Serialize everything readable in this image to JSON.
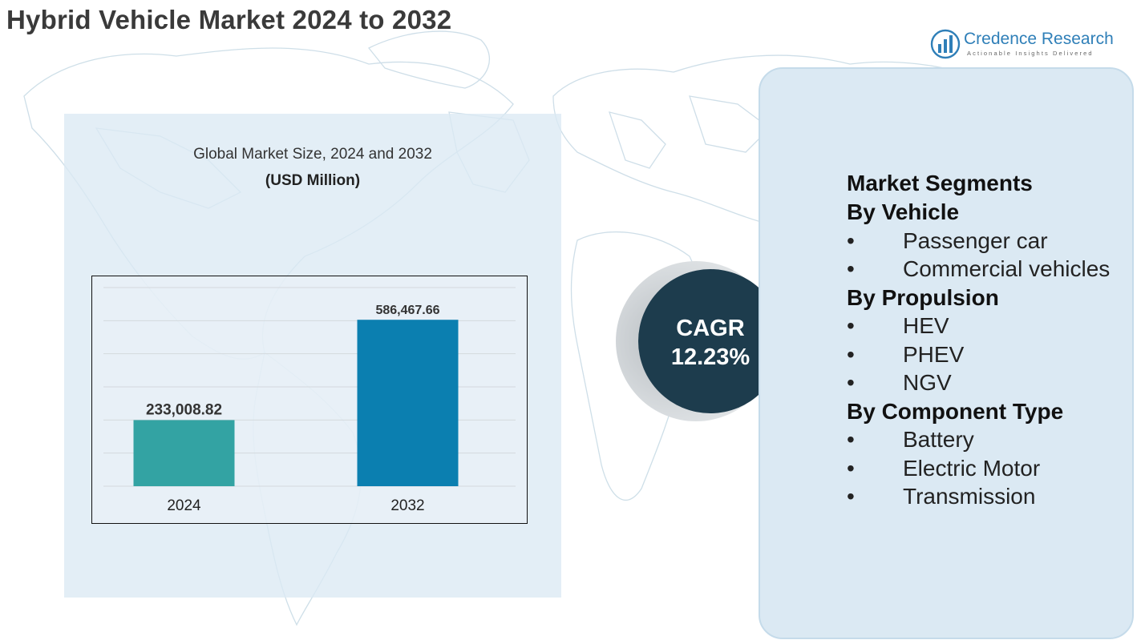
{
  "header": {
    "title": "Hybrid Vehicle Market 2024 to 2032"
  },
  "logo": {
    "name": "Credence Research",
    "tagline": "Actionable Insights Delivered",
    "icon": "bar-chart-logo-icon",
    "color": "#2f7fb8"
  },
  "chart_data": {
    "type": "bar",
    "title": "Global Market Size, 2024 and 2032",
    "unit_label": "(USD Million)",
    "categories": [
      "2024",
      "2032"
    ],
    "values": [
      233008.82,
      586467.66
    ],
    "value_labels": [
      "233,008.82",
      "586,467.66"
    ],
    "colors": [
      "#33a3a3",
      "#0b7fb0"
    ],
    "ylim": [
      0,
      700000
    ],
    "grid": true,
    "xlabel": "",
    "ylabel": ""
  },
  "cagr": {
    "label": "CAGR",
    "value": "12.23%"
  },
  "segments": {
    "heading": "Market Segments",
    "groups": [
      {
        "title": "By Vehicle",
        "items": [
          "Passenger car",
          "Commercial vehicles"
        ]
      },
      {
        "title": "By Propulsion",
        "items": [
          "HEV",
          "PHEV",
          "NGV"
        ]
      },
      {
        "title": "By Component Type",
        "items": [
          "Battery",
          "Electric Motor",
          "Transmission"
        ]
      }
    ]
  },
  "bullet": "•"
}
